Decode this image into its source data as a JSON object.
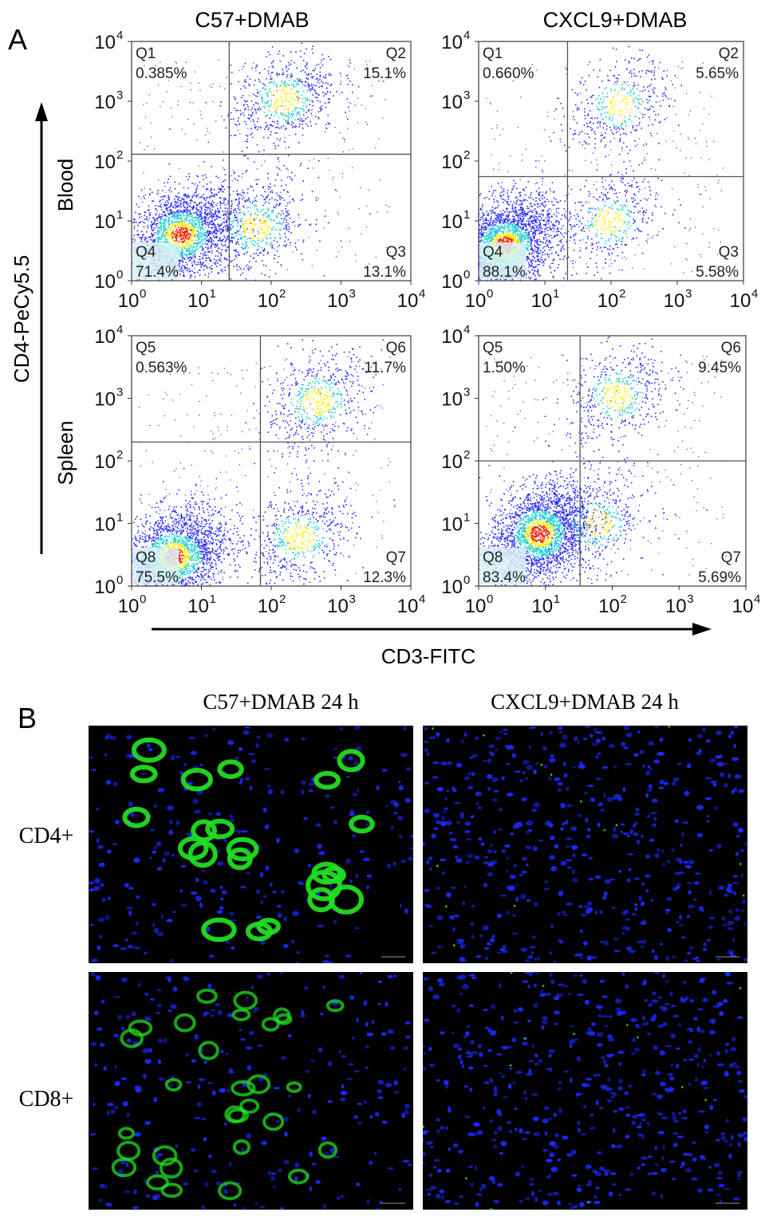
{
  "panel_a": {
    "letter": "A",
    "col_titles": [
      "C57+DMAB",
      "CXCL9+DMAB"
    ],
    "row_labels": [
      "Blood",
      "Spleen"
    ],
    "y_axis_label": "CD4-PeCy5.5",
    "x_axis_label": "CD3-FITC",
    "tick_base": "10",
    "tick_exps": [
      "0",
      "1",
      "2",
      "3",
      "4"
    ]
  },
  "panel_b": {
    "letter": "B",
    "col_titles": [
      "C57+DMAB 24 h",
      "CXCL9+DMAB 24 h"
    ],
    "row_labels": [
      "CD4+",
      "CD8+"
    ]
  },
  "colors": {
    "density_low": "#2a2aff",
    "density_mid": "#22d0d0",
    "density_high": "#ffee00",
    "density_peak": "#ff2200",
    "gfp_green": "#22dd22",
    "dapi_blue": "#1a2aff"
  },
  "chart_data": [
    {
      "type": "scatter",
      "title": "C57+DMAB",
      "row": "Blood",
      "xlabel": "CD3-FITC",
      "ylabel": "CD4-PeCy5.5",
      "xscale": "log",
      "yscale": "log",
      "xlim": [
        1,
        10000
      ],
      "ylim": [
        1,
        10000
      ],
      "gate": {
        "x": 25,
        "y": 130
      },
      "quadrants": [
        {
          "name": "Q1",
          "value": "0.385%"
        },
        {
          "name": "Q2",
          "value": "15.1%"
        },
        {
          "name": "Q3",
          "value": "13.1%"
        },
        {
          "name": "Q4",
          "value": "71.4%"
        }
      ],
      "populations": [
        {
          "x": 5,
          "y": 6,
          "weight": 0.71
        },
        {
          "x": 150,
          "y": 1100,
          "weight": 0.15
        },
        {
          "x": 60,
          "y": 8,
          "weight": 0.13
        }
      ]
    },
    {
      "type": "scatter",
      "title": "CXCL9+DMAB",
      "row": "Blood",
      "xlabel": "CD3-FITC",
      "ylabel": "CD4-PeCy5.5",
      "xscale": "log",
      "yscale": "log",
      "xlim": [
        1,
        10000
      ],
      "ylim": [
        1,
        10000
      ],
      "gate": {
        "x": 22,
        "y": 55
      },
      "quadrants": [
        {
          "name": "Q1",
          "value": "0.660%"
        },
        {
          "name": "Q2",
          "value": "5.65%"
        },
        {
          "name": "Q3",
          "value": "5.58%"
        },
        {
          "name": "Q4",
          "value": "88.1%"
        }
      ],
      "populations": [
        {
          "x": 2.5,
          "y": 4,
          "weight": 0.88
        },
        {
          "x": 130,
          "y": 900,
          "weight": 0.06
        },
        {
          "x": 90,
          "y": 10,
          "weight": 0.06
        }
      ]
    },
    {
      "type": "scatter",
      "title": "C57+DMAB",
      "row": "Spleen",
      "xlabel": "CD3-FITC",
      "ylabel": "CD4-PeCy5.5",
      "xscale": "log",
      "yscale": "log",
      "xlim": [
        1,
        10000
      ],
      "ylim": [
        1,
        10000
      ],
      "gate": {
        "x": 70,
        "y": 200
      },
      "quadrants": [
        {
          "name": "Q5",
          "value": "0.563%"
        },
        {
          "name": "Q6",
          "value": "11.7%"
        },
        {
          "name": "Q7",
          "value": "12.3%"
        },
        {
          "name": "Q8",
          "value": "75.5%"
        }
      ],
      "populations": [
        {
          "x": 4,
          "y": 3,
          "weight": 0.755
        },
        {
          "x": 450,
          "y": 900,
          "weight": 0.12
        },
        {
          "x": 250,
          "y": 6,
          "weight": 0.12
        }
      ]
    },
    {
      "type": "scatter",
      "title": "CXCL9+DMAB",
      "row": "Spleen",
      "xlabel": "CD3-FITC",
      "ylabel": "CD4-PeCy5.5",
      "xscale": "log",
      "yscale": "log",
      "xlim": [
        1,
        10000
      ],
      "ylim": [
        1,
        10000
      ],
      "gate": {
        "x": 33,
        "y": 100
      },
      "quadrants": [
        {
          "name": "Q5",
          "value": "1.50%"
        },
        {
          "name": "Q6",
          "value": "9.45%"
        },
        {
          "name": "Q7",
          "value": "5.69%"
        },
        {
          "name": "Q8",
          "value": "83.4%"
        }
      ],
      "populations": [
        {
          "x": 8,
          "y": 7,
          "weight": 0.83
        },
        {
          "x": 120,
          "y": 1100,
          "weight": 0.095
        },
        {
          "x": 60,
          "y": 10,
          "weight": 0.06
        }
      ]
    }
  ]
}
